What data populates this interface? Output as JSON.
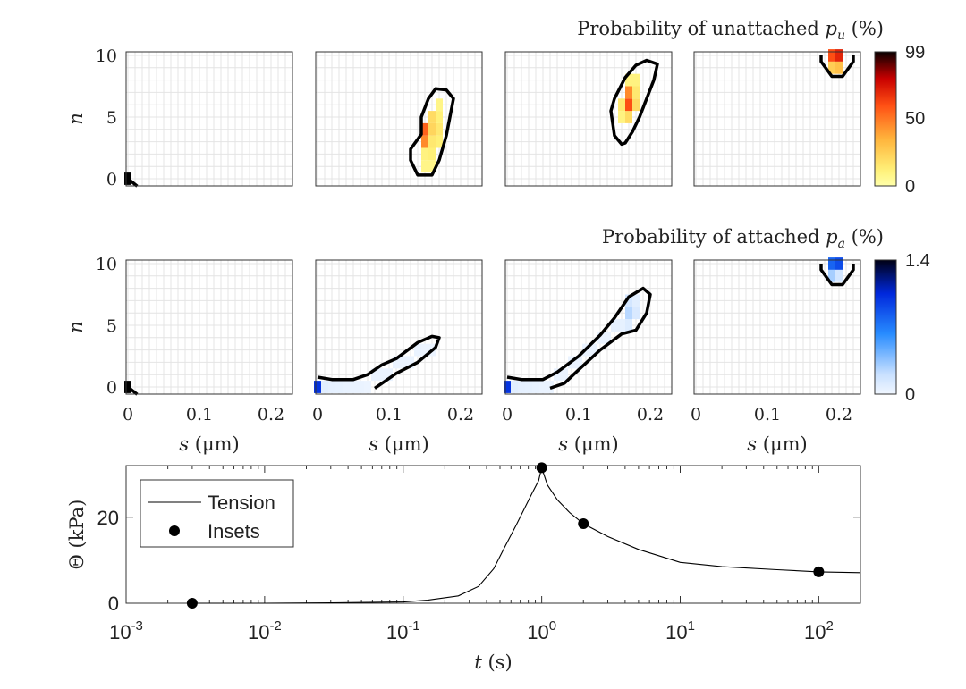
{
  "chart_data": [
    {
      "type": "heatmap",
      "title": "Probability of unattached p_u (%)",
      "title_parts": {
        "prefix": "Probability of unattached ",
        "sym": "p",
        "sub": "u",
        "suffix": " (%)"
      },
      "ylabel": "n",
      "xlim": [
        0,
        0.23
      ],
      "ylim": [
        0,
        10
      ],
      "yticks": [
        "0",
        "5",
        "10"
      ],
      "colorbar": {
        "ticks": [
          "99",
          "50",
          "0"
        ],
        "range": [
          0,
          99
        ],
        "colormap": "hot (reversed)"
      },
      "insets": [
        {
          "cells": [
            [
              0,
              0,
              99
            ]
          ],
          "contour": [
            [
              0,
              0.0
            ],
            [
              0.013,
              -0.6
            ]
          ]
        },
        {
          "cells": [
            [
              0.15,
              1,
              8
            ],
            [
              0.16,
              1,
              8
            ],
            [
              0.15,
              2,
              10
            ],
            [
              0.16,
              2,
              12
            ],
            [
              0.15,
              3,
              45
            ],
            [
              0.16,
              3,
              15
            ],
            [
              0.17,
              3,
              12
            ],
            [
              0.15,
              4,
              55
            ],
            [
              0.16,
              4,
              22
            ],
            [
              0.17,
              4,
              15
            ],
            [
              0.16,
              5,
              20
            ],
            [
              0.17,
              5,
              12
            ],
            [
              0.17,
              6,
              8
            ]
          ],
          "contour": [
            [
              0.14,
              0.3
            ],
            [
              0.13,
              1.5
            ],
            [
              0.13,
              2.4
            ],
            [
              0.145,
              3.6
            ],
            [
              0.145,
              5.0
            ],
            [
              0.155,
              6.5
            ],
            [
              0.165,
              7.3
            ],
            [
              0.18,
              7.2
            ],
            [
              0.19,
              6.5
            ],
            [
              0.185,
              5.0
            ],
            [
              0.18,
              3.5
            ],
            [
              0.17,
              1.5
            ],
            [
              0.16,
              0.3
            ]
          ]
        },
        {
          "cells": [
            [
              0.16,
              5,
              10
            ],
            [
              0.17,
              5,
              20
            ],
            [
              0.17,
              6,
              60
            ],
            [
              0.16,
              6,
              15
            ],
            [
              0.17,
              7,
              45
            ],
            [
              0.18,
              6,
              20
            ],
            [
              0.18,
              7,
              15
            ],
            [
              0.18,
              8,
              10
            ],
            [
              0.17,
              8,
              10
            ]
          ],
          "contour": [
            [
              0.16,
              2.8
            ],
            [
              0.15,
              3.5
            ],
            [
              0.145,
              5.5
            ],
            [
              0.15,
              6.5
            ],
            [
              0.165,
              8.2
            ],
            [
              0.18,
              9.2
            ],
            [
              0.195,
              9.6
            ],
            [
              0.21,
              9.3
            ],
            [
              0.205,
              8.0
            ],
            [
              0.195,
              6.5
            ],
            [
              0.185,
              5.0
            ],
            [
              0.175,
              3.8
            ],
            [
              0.165,
              2.9
            ]
          ]
        },
        {
          "cells": [
            [
              0.19,
              10,
              60
            ],
            [
              0.2,
              10,
              70
            ],
            [
              0.19,
              9,
              25
            ],
            [
              0.2,
              9,
              30
            ]
          ],
          "contour": [
            [
              0.175,
              10.0
            ],
            [
              0.175,
              9.5
            ],
            [
              0.19,
              8.3
            ],
            [
              0.205,
              8.3
            ],
            [
              0.22,
              9.5
            ],
            [
              0.22,
              10.0
            ]
          ]
        }
      ]
    },
    {
      "type": "heatmap",
      "title": "Probability of attached p_a (%)",
      "title_parts": {
        "prefix": "Probability of attached ",
        "sym": "p",
        "sub": "a",
        "suffix": " (%)"
      },
      "xlabel": "s (μm)",
      "ylabel": "n",
      "xlim": [
        0,
        0.23
      ],
      "ylim": [
        0,
        10
      ],
      "xticks": [
        "0",
        "0.1",
        "0.2"
      ],
      "yticks": [
        "0",
        "5",
        "10"
      ],
      "colorbar": {
        "ticks": [
          "1.4",
          "0"
        ],
        "range": [
          0,
          1.4
        ],
        "colormap": "blue"
      },
      "insets": [
        {
          "cells": [
            [
              0,
              0,
              99
            ]
          ],
          "contour": [
            [
              0,
              0.0
            ],
            [
              0.013,
              -0.6
            ]
          ]
        },
        {
          "cells": [
            [
              0,
              0,
              1.0
            ],
            [
              0.01,
              0,
              0.08
            ],
            [
              0.02,
              0,
              0.06
            ],
            [
              0.03,
              0,
              0.05
            ],
            [
              0.04,
              0,
              0.04
            ],
            [
              0.05,
              0,
              0.03
            ],
            [
              0.06,
              0,
              0.03
            ],
            [
              0.07,
              0,
              0.02
            ],
            [
              0.08,
              1,
              0.03
            ],
            [
              0.09,
              1,
              0.03
            ],
            [
              0.1,
              1,
              0.03
            ],
            [
              0.11,
              2,
              0.03
            ],
            [
              0.12,
              2,
              0.03
            ],
            [
              0.13,
              2,
              0.03
            ],
            [
              0.14,
              3,
              0.03
            ],
            [
              0.15,
              3,
              0.02
            ],
            [
              0.16,
              3,
              0.02
            ]
          ],
          "contour": [
            [
              0.0,
              0.8
            ],
            [
              0.02,
              0.6
            ],
            [
              0.05,
              0.6
            ],
            [
              0.07,
              1.0
            ],
            [
              0.09,
              1.8
            ],
            [
              0.11,
              2.3
            ],
            [
              0.14,
              3.6
            ],
            [
              0.16,
              4.1
            ],
            [
              0.17,
              4.0
            ],
            [
              0.165,
              3.2
            ],
            [
              0.14,
              2.0
            ],
            [
              0.11,
              1.1
            ],
            [
              0.09,
              0.3
            ],
            [
              0.08,
              -0.1
            ]
          ]
        },
        {
          "cells": [
            [
              0,
              0,
              1.0
            ],
            [
              0.01,
              0,
              0.08
            ],
            [
              0.02,
              0,
              0.06
            ],
            [
              0.03,
              0,
              0.05
            ],
            [
              0.04,
              0,
              0.04
            ],
            [
              0.05,
              0,
              0.03
            ],
            [
              0.06,
              0,
              0.03
            ],
            [
              0.07,
              1,
              0.03
            ],
            [
              0.08,
              1,
              0.03
            ],
            [
              0.09,
              2,
              0.03
            ],
            [
              0.1,
              2,
              0.03
            ],
            [
              0.11,
              3,
              0.03
            ],
            [
              0.12,
              3,
              0.03
            ],
            [
              0.13,
              4,
              0.03
            ],
            [
              0.14,
              4,
              0.03
            ],
            [
              0.15,
              5,
              0.05
            ],
            [
              0.16,
              5,
              0.05
            ],
            [
              0.17,
              5,
              0.1
            ],
            [
              0.17,
              6,
              0.25
            ],
            [
              0.18,
              6,
              0.12
            ],
            [
              0.17,
              7,
              0.15
            ],
            [
              0.18,
              7,
              0.08
            ]
          ],
          "contour": [
            [
              0.0,
              0.8
            ],
            [
              0.02,
              0.6
            ],
            [
              0.05,
              0.6
            ],
            [
              0.07,
              1.2
            ],
            [
              0.1,
              2.5
            ],
            [
              0.13,
              4.2
            ],
            [
              0.15,
              5.6
            ],
            [
              0.17,
              7.3
            ],
            [
              0.19,
              8.0
            ],
            [
              0.2,
              7.5
            ],
            [
              0.195,
              6.0
            ],
            [
              0.18,
              4.6
            ],
            [
              0.16,
              4.3
            ],
            [
              0.13,
              3.0
            ],
            [
              0.1,
              1.4
            ],
            [
              0.08,
              0.3
            ],
            [
              0.06,
              -0.1
            ]
          ]
        },
        {
          "cells": [
            [
              0.19,
              10,
              0.8
            ],
            [
              0.2,
              10,
              0.9
            ],
            [
              0.19,
              9,
              0.3
            ],
            [
              0.2,
              9,
              0.15
            ]
          ],
          "contour": [
            [
              0.175,
              10.0
            ],
            [
              0.175,
              9.5
            ],
            [
              0.19,
              8.3
            ],
            [
              0.205,
              8.3
            ],
            [
              0.22,
              9.5
            ],
            [
              0.22,
              10.0
            ]
          ]
        }
      ]
    },
    {
      "type": "line",
      "xlabel": "t (s)",
      "ylabel": "Θ (kPa)",
      "xscale": "log",
      "xlim": [
        0.001,
        200
      ],
      "ylim": [
        0,
        32
      ],
      "yticks": [
        "0",
        "20"
      ],
      "xticks": [
        {
          "base": "10",
          "exp": "-3"
        },
        {
          "base": "10",
          "exp": "-2"
        },
        {
          "base": "10",
          "exp": "-1"
        },
        {
          "base": "10",
          "exp": "0"
        },
        {
          "base": "10",
          "exp": "1"
        },
        {
          "base": "10",
          "exp": "2"
        }
      ],
      "legend": {
        "placement": "top-left",
        "entries": [
          "Tension",
          "Insets"
        ]
      },
      "series": [
        {
          "name": "Tension",
          "kind": "line",
          "x": [
            0.003,
            0.01,
            0.03,
            0.1,
            0.15,
            0.25,
            0.35,
            0.45,
            0.55,
            0.65,
            0.75,
            0.85,
            0.95,
            1.0,
            1.1,
            1.3,
            1.6,
            2.0,
            3.0,
            5.0,
            10,
            20,
            50,
            100,
            200
          ],
          "y": [
            0,
            0,
            0.1,
            0.3,
            0.7,
            1.7,
            3.9,
            8.0,
            13.5,
            18.0,
            22.0,
            25.5,
            28.5,
            31.5,
            27.5,
            24.0,
            21.0,
            18.5,
            15.5,
            12.5,
            9.5,
            8.5,
            7.8,
            7.3,
            7.1
          ]
        },
        {
          "name": "Insets",
          "kind": "markers",
          "x": [
            0.003,
            1.0,
            2.0,
            100
          ],
          "y": [
            0,
            31.5,
            18.5,
            7.3
          ]
        }
      ]
    }
  ]
}
